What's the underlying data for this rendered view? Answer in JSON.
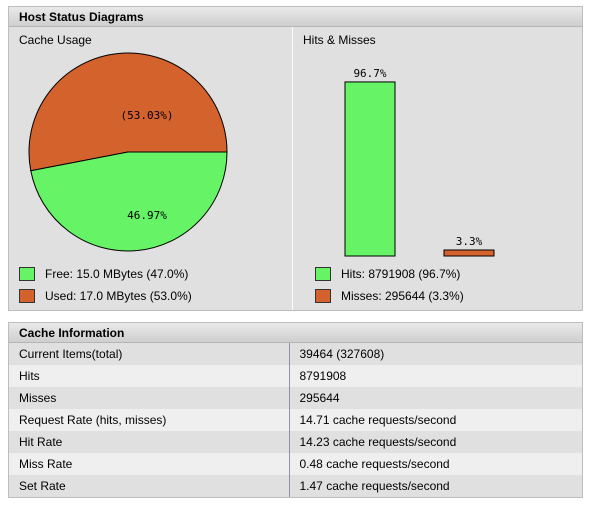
{
  "diagrams": {
    "title": "Host Status Diagrams",
    "cache_usage": {
      "title": "Cache Usage",
      "used_label": "(53.03%)",
      "free_label": "46.97%",
      "legend_free": "Free: 15.0 MBytes (47.0%)",
      "legend_used": "Used: 17.0 MBytes (53.0%)"
    },
    "hits_misses": {
      "title": "Hits & Misses",
      "hits_label": "96.7%",
      "misses_label": "3.3%",
      "legend_hits": "Hits: 8791908 (96.7%)",
      "legend_misses": "Misses: 295644 (3.3%)"
    }
  },
  "colors": {
    "free": "#66f466",
    "used": "#d4622d",
    "outline": "#000000"
  },
  "chart_data": [
    {
      "type": "pie",
      "title": "Cache Usage",
      "slices": [
        {
          "name": "Used",
          "value": 53.03
        },
        {
          "name": "Free",
          "value": 46.97
        }
      ]
    },
    {
      "type": "bar",
      "title": "Hits & Misses",
      "categories": [
        "Hits",
        "Misses"
      ],
      "values": [
        96.7,
        3.3
      ],
      "ylim": [
        0,
        100
      ]
    }
  ],
  "info": {
    "title": "Cache Information",
    "rows": [
      {
        "key": "Current Items(total)",
        "value": "39464 (327608)"
      },
      {
        "key": "Hits",
        "value": "8791908"
      },
      {
        "key": "Misses",
        "value": "295644"
      },
      {
        "key": "Request Rate (hits, misses)",
        "value": "14.71 cache requests/second"
      },
      {
        "key": "Hit Rate",
        "value": "14.23 cache requests/second"
      },
      {
        "key": "Miss Rate",
        "value": "0.48 cache requests/second"
      },
      {
        "key": "Set Rate",
        "value": "1.47 cache requests/second"
      }
    ]
  }
}
